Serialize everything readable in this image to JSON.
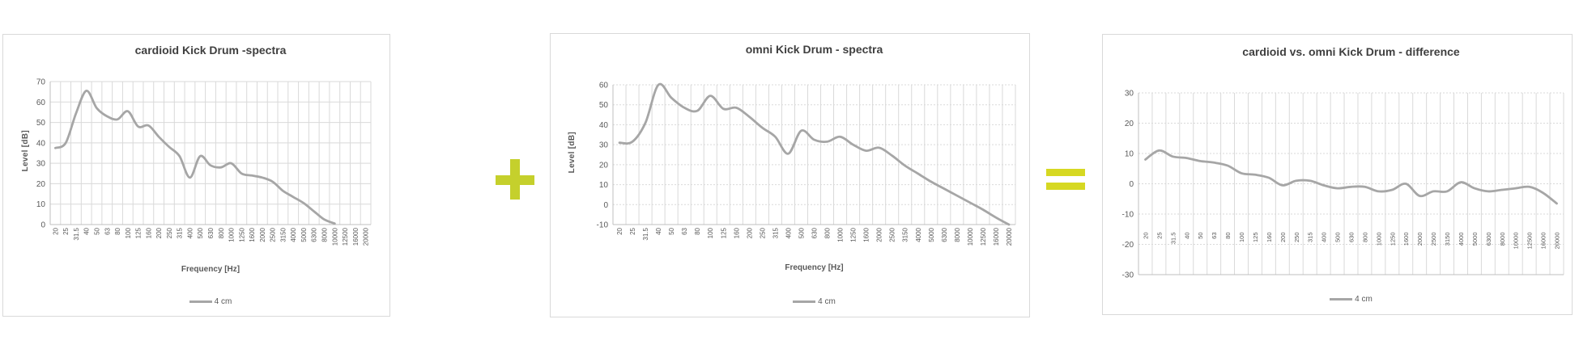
{
  "page": {
    "background": "#ffffff"
  },
  "style": {
    "grid_color": "#d9d9d9",
    "axis_color": "#bfbfbf",
    "tick_text_color": "#595959",
    "title_color": "#3f3f3f",
    "series_color": "#a6a6a6",
    "card_border_color": "#d9d9d9"
  },
  "operators": {
    "plus_symbol": "+",
    "equals_symbol": "=",
    "plus_color": "#c5d02c",
    "equals_color": "#d6d822"
  },
  "chart_data": [
    {
      "type": "line",
      "title": "cardioid Kick Drum -spectra",
      "xlabel": "Frequency [Hz]",
      "ylabel": "Level [dB]",
      "legend": "4 cm",
      "legend_position": "bottom",
      "grid": true,
      "x_labels_rotated": true,
      "x_labels_position": "below-axis",
      "ylim": [
        0,
        70
      ],
      "ytick": 10,
      "categories": [
        "20",
        "25",
        "31.5",
        "40",
        "50",
        "63",
        "80",
        "100",
        "125",
        "160",
        "200",
        "250",
        "315",
        "400",
        "500",
        "630",
        "800",
        "1000",
        "1250",
        "1600",
        "2000",
        "2500",
        "3150",
        "4000",
        "5000",
        "6300",
        "8000",
        "10000",
        "12500",
        "16000",
        "20000"
      ],
      "series": [
        {
          "name": "4 cm",
          "values": [
            37.5,
            40,
            54.5,
            65.5,
            57,
            53,
            51.5,
            55.5,
            48,
            48.5,
            43,
            38,
            33.5,
            23,
            33.5,
            29,
            28,
            30,
            25,
            24,
            23,
            21,
            16.5,
            13.5,
            10.5,
            6.5,
            2.5,
            0.5,
            null,
            null,
            null
          ]
        }
      ]
    },
    {
      "type": "line",
      "title": "omni Kick Drum - spectra",
      "xlabel": "Frequency [Hz]",
      "ylabel": "Level [dB]",
      "legend": "4 cm",
      "legend_position": "bottom",
      "grid": true,
      "x_labels_rotated": true,
      "x_labels_position": "below-axis",
      "ylim": [
        -10,
        60
      ],
      "ytick": 10,
      "categories": [
        "20",
        "25",
        "31.5",
        "40",
        "50",
        "63",
        "80",
        "100",
        "125",
        "160",
        "200",
        "250",
        "315",
        "400",
        "500",
        "630",
        "800",
        "1000",
        "1250",
        "1600",
        "2000",
        "2500",
        "3150",
        "4000",
        "5000",
        "6300",
        "8000",
        "10000",
        "12500",
        "16000",
        "20000"
      ],
      "series": [
        {
          "name": "4 cm",
          "values": [
            31,
            31.5,
            41,
            60,
            53.5,
            48.5,
            47,
            54.5,
            48,
            48.5,
            44,
            38.5,
            34,
            25.5,
            37,
            32.5,
            31.5,
            34,
            30,
            27,
            28.5,
            24.5,
            19.5,
            15.5,
            11.5,
            8,
            4.5,
            1,
            -2.5,
            -6.5,
            -10
          ]
        }
      ]
    },
    {
      "type": "line",
      "title": "cardioid vs. omni Kick Drum - difference",
      "xlabel": "",
      "ylabel": "",
      "legend": "4 cm",
      "legend_position": "bottom",
      "grid": true,
      "x_labels_rotated": true,
      "x_labels_position": "inside-plot",
      "ylim": [
        -30,
        30
      ],
      "ytick": 10,
      "categories": [
        "20",
        "25",
        "31.5",
        "40",
        "50",
        "63",
        "80",
        "100",
        "125",
        "160",
        "200",
        "250",
        "315",
        "400",
        "500",
        "630",
        "800",
        "1000",
        "1250",
        "1600",
        "2000",
        "2500",
        "3150",
        "4000",
        "5000",
        "6300",
        "8000",
        "10000",
        "12500",
        "16000",
        "20000"
      ],
      "series": [
        {
          "name": "4 cm",
          "values": [
            8,
            11,
            9,
            8.5,
            7.5,
            7,
            6,
            3.5,
            3,
            2,
            -0.5,
            1,
            1,
            -0.5,
            -1.5,
            -1,
            -1,
            -2.5,
            -2,
            0,
            -4,
            -2.5,
            -2.5,
            0.5,
            -1.5,
            -2.5,
            -2,
            -1.5,
            -1,
            -3,
            -6.5
          ]
        }
      ]
    }
  ]
}
